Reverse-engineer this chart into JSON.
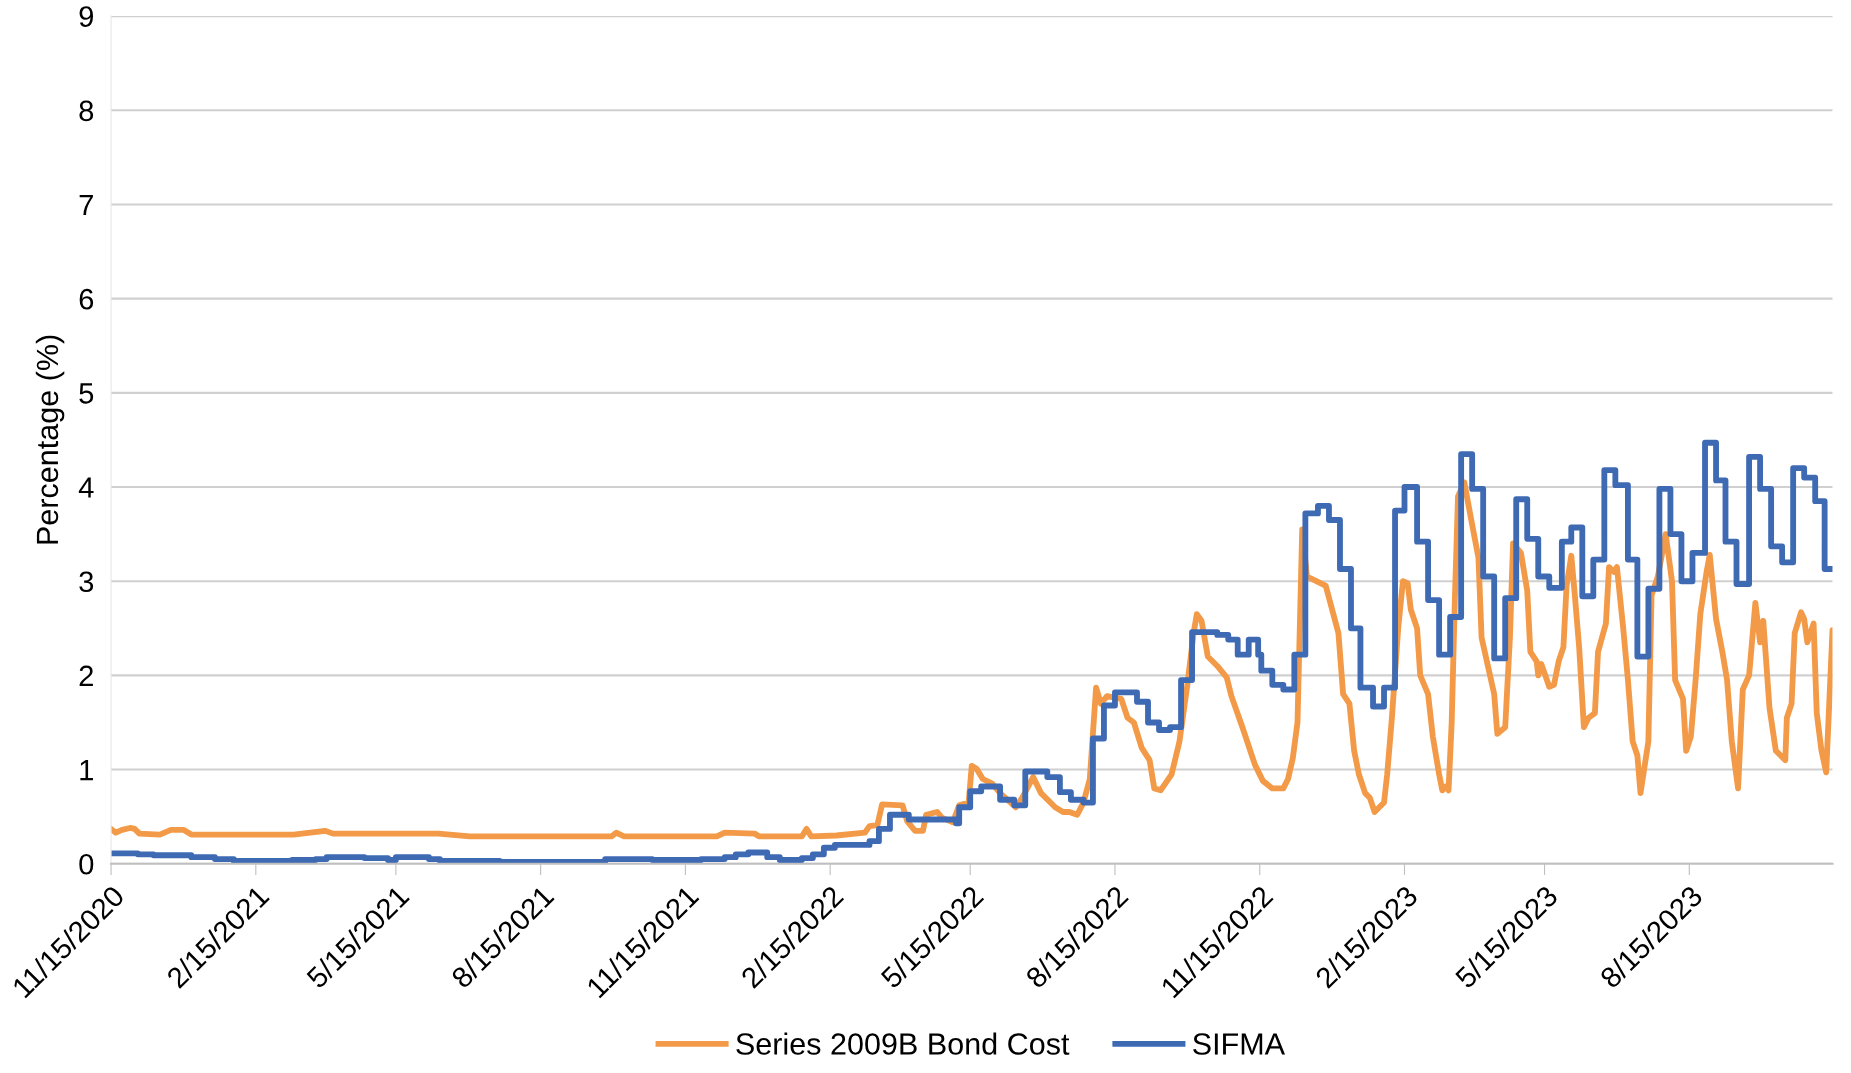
{
  "chart_data": {
    "type": "line",
    "ylabel": "Percentage (%)",
    "ylim": [
      0,
      9
    ],
    "yticks": [
      0,
      1,
      2,
      3,
      4,
      5,
      6,
      7,
      8,
      9
    ],
    "grid": "y",
    "legend": "bottom",
    "line_style": "solid",
    "marker": "none",
    "xlim": [
      "2020-11-15",
      "2023-11-14"
    ],
    "xticks": [
      {
        "value": "2020-11-15",
        "label": "11/15/2020"
      },
      {
        "value": "2021-02-15",
        "label": "2/15/2021"
      },
      {
        "value": "2021-05-15",
        "label": "5/15/2021"
      },
      {
        "value": "2021-08-15",
        "label": "8/15/2021"
      },
      {
        "value": "2021-11-15",
        "label": "11/15/2021"
      },
      {
        "value": "2022-02-15",
        "label": "2/15/2022"
      },
      {
        "value": "2022-05-15",
        "label": "5/15/2022"
      },
      {
        "value": "2022-08-15",
        "label": "8/15/2022"
      },
      {
        "value": "2022-11-15",
        "label": "11/15/2022"
      },
      {
        "value": "2023-02-15",
        "label": "2/15/2023"
      },
      {
        "value": "2023-05-15",
        "label": "5/15/2023"
      },
      {
        "value": "2023-08-15",
        "label": "8/15/2023"
      }
    ],
    "series": [
      {
        "name": "Series 2009B Bond Cost",
        "color": "#f39a48",
        "x": [
          "2020-11-15",
          "2020-11-18",
          "2020-11-22",
          "2020-11-27",
          "2020-11-30",
          "2020-12-03",
          "2020-12-16",
          "2020-12-23",
          "2020-12-31",
          "2021-01-05",
          "2021-03-11",
          "2021-03-31",
          "2021-04-05",
          "2021-06-11",
          "2021-07-01",
          "2021-09-29",
          "2021-10-02",
          "2021-10-07",
          "2021-12-05",
          "2021-12-10",
          "2021-12-29",
          "2022-01-01",
          "2022-01-28",
          "2022-01-31",
          "2022-02-03",
          "2022-02-19",
          "2022-03-09",
          "2022-03-12",
          "2022-03-17",
          "2022-03-20",
          "2022-04-02",
          "2022-04-05",
          "2022-04-10",
          "2022-04-15",
          "2022-04-17",
          "2022-04-24",
          "2022-04-27",
          "2022-05-04",
          "2022-05-08",
          "2022-05-14",
          "2022-05-16",
          "2022-05-19",
          "2022-05-23",
          "2022-05-29",
          "2022-06-03",
          "2022-06-13",
          "2022-06-17",
          "2022-06-24",
          "2022-06-29",
          "2022-07-08",
          "2022-07-13",
          "2022-07-17",
          "2022-07-22",
          "2022-07-26",
          "2022-07-30",
          "2022-08-03",
          "2022-08-06",
          "2022-08-10",
          "2022-08-19",
          "2022-08-23",
          "2022-08-27",
          "2022-09-01",
          "2022-09-06",
          "2022-09-09",
          "2022-09-13",
          "2022-09-20",
          "2022-09-25",
          "2022-09-30",
          "2022-10-04",
          "2022-10-06",
          "2022-10-09",
          "2022-10-13",
          "2022-10-19",
          "2022-10-25",
          "2022-10-28",
          "2022-11-04",
          "2022-11-12",
          "2022-11-17",
          "2022-11-23",
          "2022-11-30",
          "2022-12-03",
          "2022-12-06",
          "2022-12-09",
          "2022-12-12",
          "2022-12-15",
          "2022-12-21",
          "2022-12-27",
          "2023-01-04",
          "2023-01-07",
          "2023-01-11",
          "2023-01-14",
          "2023-01-17",
          "2023-01-21",
          "2023-01-24",
          "2023-01-27",
          "2023-02-02",
          "2023-02-04",
          "2023-02-07",
          "2023-02-11",
          "2023-02-14",
          "2023-02-17",
          "2023-02-19",
          "2023-02-23",
          "2023-02-25",
          "2023-03-02",
          "2023-03-05",
          "2023-03-09",
          "2023-03-11",
          "2023-03-13",
          "2023-03-15",
          "2023-03-17",
          "2023-03-19",
          "2023-03-21",
          "2023-03-25",
          "2023-03-30",
          "2023-04-03",
          "2023-04-05",
          "2023-04-09",
          "2023-04-13",
          "2023-04-15",
          "2023-04-20",
          "2023-04-23",
          "2023-04-25",
          "2023-04-30",
          "2023-05-04",
          "2023-05-06",
          "2023-05-10",
          "2023-05-11",
          "2023-05-13",
          "2023-05-18",
          "2023-05-21",
          "2023-05-24",
          "2023-05-27",
          "2023-05-29",
          "2023-06-01",
          "2023-06-03",
          "2023-06-06",
          "2023-06-09",
          "2023-06-12",
          "2023-06-16",
          "2023-06-18",
          "2023-06-23",
          "2023-06-25",
          "2023-06-28",
          "2023-06-30",
          "2023-07-04",
          "2023-07-07",
          "2023-07-10",
          "2023-07-13",
          "2023-07-15",
          "2023-07-20",
          "2023-07-22",
          "2023-07-26",
          "2023-07-31",
          "2023-08-04",
          "2023-08-06",
          "2023-08-11",
          "2023-08-13",
          "2023-08-16",
          "2023-08-19",
          "2023-08-22",
          "2023-08-26",
          "2023-08-28",
          "2023-09-01",
          "2023-09-05",
          "2023-09-08",
          "2023-09-11",
          "2023-09-15",
          "2023-09-18",
          "2023-09-22",
          "2023-09-26",
          "2023-09-29",
          "2023-10-01",
          "2023-10-05",
          "2023-10-09",
          "2023-10-15",
          "2023-10-16",
          "2023-10-19",
          "2023-10-21",
          "2023-10-25",
          "2023-10-27",
          "2023-10-29",
          "2023-11-02",
          "2023-11-04",
          "2023-11-07",
          "2023-11-10",
          "2023-11-14"
        ],
        "values": [
          0.37,
          0.33,
          0.36,
          0.38,
          0.37,
          0.32,
          0.31,
          0.36,
          0.36,
          0.31,
          0.31,
          0.35,
          0.32,
          0.32,
          0.29,
          0.29,
          0.33,
          0.29,
          0.29,
          0.33,
          0.32,
          0.29,
          0.29,
          0.37,
          0.29,
          0.3,
          0.33,
          0.4,
          0.41,
          0.63,
          0.62,
          0.45,
          0.35,
          0.35,
          0.52,
          0.55,
          0.49,
          0.44,
          0.62,
          0.65,
          1.04,
          1.01,
          0.9,
          0.85,
          0.75,
          0.6,
          0.7,
          0.92,
          0.75,
          0.6,
          0.55,
          0.55,
          0.52,
          0.65,
          0.9,
          1.87,
          1.7,
          1.78,
          1.75,
          1.55,
          1.5,
          1.23,
          1.1,
          0.8,
          0.78,
          0.95,
          1.3,
          1.9,
          2.45,
          2.65,
          2.58,
          2.2,
          2.1,
          1.98,
          1.78,
          1.45,
          1.05,
          0.88,
          0.8,
          0.8,
          0.9,
          1.12,
          1.5,
          3.55,
          3.05,
          3.0,
          2.95,
          2.45,
          1.8,
          1.7,
          1.2,
          0.95,
          0.75,
          0.7,
          0.55,
          0.65,
          0.95,
          1.55,
          2.5,
          3.0,
          2.98,
          2.7,
          2.5,
          2.0,
          1.8,
          1.35,
          0.95,
          0.78,
          0.82,
          0.78,
          1.5,
          2.8,
          3.9,
          4.05,
          3.6,
          3.25,
          2.4,
          2.1,
          1.8,
          1.38,
          1.45,
          2.4,
          3.4,
          3.3,
          2.9,
          2.25,
          2.15,
          2.0,
          2.12,
          1.88,
          1.9,
          2.15,
          2.3,
          2.95,
          3.27,
          2.9,
          2.3,
          1.45,
          1.55,
          1.6,
          2.25,
          2.55,
          3.15,
          3.1,
          3.15,
          2.5,
          1.95,
          1.3,
          1.15,
          0.75,
          1.3,
          2.85,
          3.05,
          3.5,
          3.0,
          1.95,
          1.75,
          1.2,
          1.35,
          1.95,
          2.65,
          3.1,
          3.28,
          2.6,
          2.25,
          1.95,
          1.3,
          0.8,
          1.85,
          2.0,
          2.77,
          2.35,
          2.58,
          1.65,
          1.2,
          1.1,
          1.55,
          1.7,
          2.45,
          2.67,
          2.6,
          2.35,
          2.55,
          1.6,
          1.2,
          0.97,
          2.48
        ]
      },
      {
        "name": "SIFMA",
        "type": "step",
        "color": "#3e6ab4",
        "x": [
          "2020-11-15",
          "2020-12-02",
          "2020-12-12",
          "2021-01-05",
          "2021-01-20",
          "2021-02-01",
          "2021-03-10",
          "2021-03-25",
          "2021-04-01",
          "2021-04-25",
          "2021-05-10",
          "2021-05-15",
          "2021-06-05",
          "2021-06-12",
          "2021-07-20",
          "2021-09-25",
          "2021-10-25",
          "2021-11-25",
          "2021-12-10",
          "2021-12-17",
          "2021-12-25",
          "2022-01-06",
          "2022-01-14",
          "2022-01-28",
          "2022-02-04",
          "2022-02-11",
          "2022-02-18",
          "2022-03-12",
          "2022-03-18",
          "2022-03-25",
          "2022-04-06",
          "2022-05-06",
          "2022-05-08",
          "2022-05-15",
          "2022-05-22",
          "2022-06-03",
          "2022-06-12",
          "2022-06-19",
          "2022-07-03",
          "2022-07-11",
          "2022-07-18",
          "2022-07-26",
          "2022-08-01",
          "2022-08-08",
          "2022-08-15",
          "2022-08-29",
          "2022-09-05",
          "2022-09-12",
          "2022-09-19",
          "2022-09-26",
          "2022-10-03",
          "2022-10-19",
          "2022-10-26",
          "2022-11-01",
          "2022-11-08",
          "2022-11-14",
          "2022-11-16",
          "2022-11-23",
          "2022-11-30",
          "2022-12-07",
          "2022-12-14",
          "2022-12-22",
          "2022-12-29",
          "2023-01-05",
          "2023-01-12",
          "2023-01-18",
          "2023-01-26",
          "2023-02-02",
          "2023-02-09",
          "2023-02-15",
          "2023-02-23",
          "2023-03-02",
          "2023-03-09",
          "2023-03-16",
          "2023-03-23",
          "2023-03-30",
          "2023-04-06",
          "2023-04-13",
          "2023-04-20",
          "2023-04-27",
          "2023-05-04",
          "2023-05-11",
          "2023-05-18",
          "2023-05-26",
          "2023-06-01",
          "2023-06-08",
          "2023-06-15",
          "2023-06-22",
          "2023-06-29",
          "2023-07-07",
          "2023-07-13",
          "2023-07-20",
          "2023-07-27",
          "2023-08-03",
          "2023-08-10",
          "2023-08-17",
          "2023-08-25",
          "2023-09-01",
          "2023-09-07",
          "2023-09-14",
          "2023-09-22",
          "2023-09-29",
          "2023-10-06",
          "2023-10-13",
          "2023-10-20",
          "2023-10-27",
          "2023-11-03",
          "2023-11-09",
          "2023-11-14"
        ],
        "values": [
          0.11,
          0.1,
          0.09,
          0.07,
          0.05,
          0.03,
          0.04,
          0.05,
          0.07,
          0.06,
          0.04,
          0.07,
          0.05,
          0.03,
          0.02,
          0.05,
          0.04,
          0.05,
          0.07,
          0.1,
          0.12,
          0.07,
          0.04,
          0.06,
          0.1,
          0.17,
          0.2,
          0.24,
          0.37,
          0.52,
          0.47,
          0.43,
          0.6,
          0.77,
          0.82,
          0.68,
          0.62,
          0.98,
          0.92,
          0.76,
          0.68,
          0.65,
          1.33,
          1.68,
          1.82,
          1.72,
          1.5,
          1.42,
          1.45,
          1.95,
          2.46,
          2.43,
          2.38,
          2.22,
          2.38,
          2.22,
          2.05,
          1.9,
          1.85,
          2.22,
          3.72,
          3.8,
          3.65,
          3.13,
          2.5,
          1.87,
          1.67,
          1.87,
          3.75,
          4.0,
          3.42,
          2.8,
          2.22,
          2.62,
          4.35,
          3.98,
          3.05,
          2.18,
          2.82,
          3.87,
          3.45,
          3.05,
          2.93,
          3.42,
          3.57,
          2.84,
          3.23,
          4.18,
          4.02,
          3.23,
          2.2,
          2.92,
          3.98,
          3.5,
          3.0,
          3.3,
          4.47,
          4.07,
          3.42,
          2.97,
          4.32,
          3.98,
          3.37,
          3.2,
          4.2,
          4.1,
          3.85,
          3.13,
          3.13
        ]
      }
    ]
  }
}
